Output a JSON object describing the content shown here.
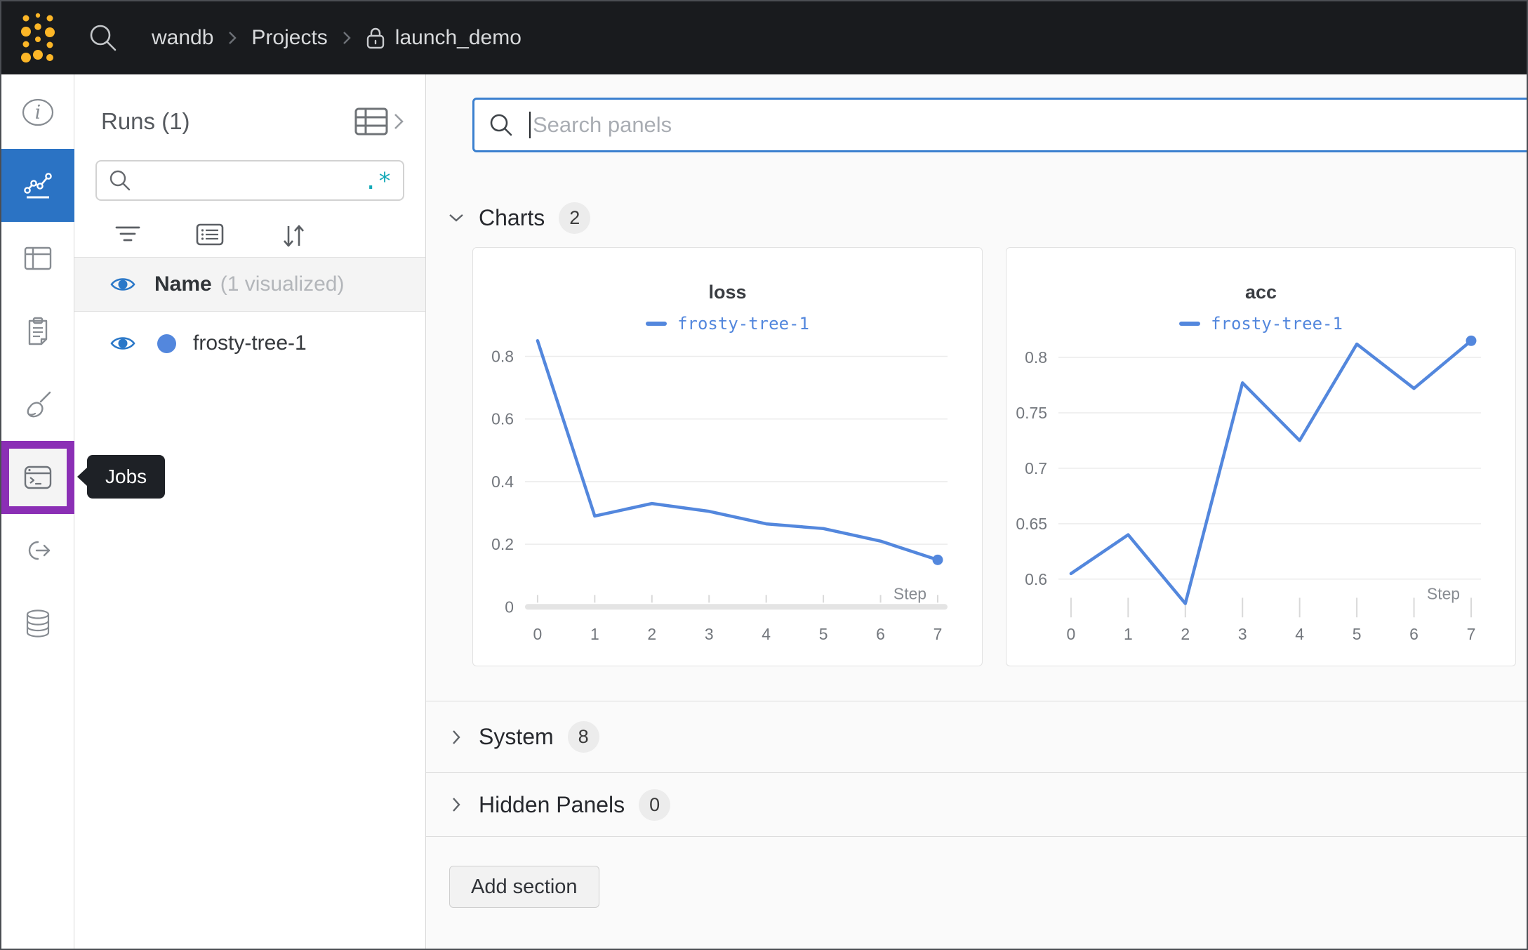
{
  "navbar": {
    "breadcrumb": {
      "entity": "wandb",
      "section": "Projects",
      "project": "launch_demo"
    }
  },
  "sidebar": {
    "tooltip_label": "Jobs"
  },
  "runs_panel": {
    "title": "Runs (1)",
    "search_value": "",
    "regex_glyph": ".*",
    "header_name": "Name",
    "header_note": "(1 visualized)",
    "runs": [
      {
        "name": "frosty-tree-1",
        "color": "#5387dd",
        "visible": true
      }
    ]
  },
  "main": {
    "search_placeholder": "Search panels",
    "sections": [
      {
        "label": "Charts",
        "count": "2",
        "expanded": true
      },
      {
        "label": "System",
        "count": "8",
        "expanded": false
      },
      {
        "label": "Hidden Panels",
        "count": "0",
        "expanded": false
      }
    ],
    "add_section_label": "Add section"
  },
  "colors": {
    "accent_blue": "#2b73c4",
    "run_blue": "#5387dd",
    "highlight_purple": "#8b2fb5",
    "regex_teal": "#13a9b8",
    "brand_gold": "#fcb627",
    "focus_border": "#3b80cf"
  },
  "chart_data": [
    {
      "type": "line",
      "title": "loss",
      "xlabel": "Step",
      "x": [
        0,
        1,
        2,
        3,
        4,
        5,
        6,
        7
      ],
      "series": [
        {
          "name": "frosty-tree-1",
          "color": "#5387dd",
          "values": [
            0.85,
            0.29,
            0.33,
            0.305,
            0.265,
            0.25,
            0.21,
            0.15
          ]
        }
      ],
      "yticks": [
        0,
        0.2,
        0.4,
        0.6,
        0.8
      ],
      "ylim": [
        0,
        0.818
      ],
      "xlim": [
        0,
        7
      ],
      "grid": true,
      "legend_position": "top",
      "zero_axis_bar": true,
      "end_marker": true
    },
    {
      "type": "line",
      "title": "acc",
      "xlabel": "Step",
      "x": [
        0,
        1,
        2,
        3,
        4,
        5,
        6,
        7
      ],
      "series": [
        {
          "name": "frosty-tree-1",
          "color": "#5387dd",
          "values": [
            0.605,
            0.64,
            0.578,
            0.777,
            0.725,
            0.812,
            0.772,
            0.815
          ]
        }
      ],
      "yticks": [
        0.6,
        0.65,
        0.7,
        0.75,
        0.8
      ],
      "ylim": [
        0.575,
        0.806
      ],
      "xlim": [
        0,
        7
      ],
      "grid": true,
      "legend_position": "top",
      "zero_axis_bar": false,
      "end_marker": true
    }
  ]
}
